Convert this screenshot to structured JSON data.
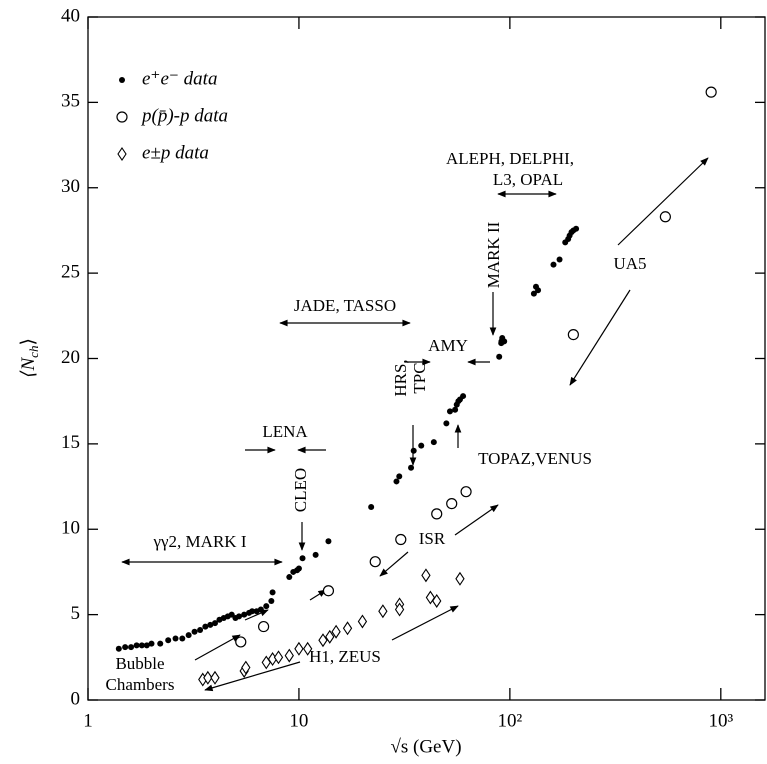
{
  "chart_data": {
    "type": "scatter",
    "x_label": "√s  (GeV)",
    "y_label_parts": [
      "⟨N",
      "ch",
      "⟩"
    ],
    "xscale": "log",
    "xlim": [
      1,
      1620
    ],
    "ylim": [
      0,
      40
    ],
    "xticks": [
      1,
      10,
      {
        "value": 100,
        "label": "10²"
      },
      {
        "value": 1000,
        "label": "10³"
      }
    ],
    "yticks": [
      0,
      5,
      10,
      15,
      20,
      25,
      30,
      35,
      40
    ],
    "legend": "upper left",
    "series": [
      {
        "name": "e⁺e⁻  data",
        "marker": "filled-circle",
        "color": "#000000",
        "x": [
          1.4,
          1.5,
          1.6,
          1.7,
          1.8,
          1.9,
          2.0,
          2.2,
          2.4,
          2.6,
          2.8,
          3.0,
          3.2,
          3.4,
          3.6,
          3.8,
          4.0,
          4.2,
          4.4,
          4.6,
          4.8,
          5.0,
          5.2,
          5.5,
          5.8,
          6.0,
          6.3,
          6.6,
          7.0,
          7.4,
          7.5,
          9.0,
          9.4,
          9.8,
          10.0,
          10.4,
          12.0,
          13.8,
          22,
          29,
          29.9,
          34,
          35,
          38,
          43.6,
          50,
          52,
          55,
          56,
          57,
          58,
          60,
          89,
          91,
          91.2,
          92,
          94,
          130,
          133,
          136,
          161,
          172,
          183,
          189,
          192,
          196,
          200,
          206
        ],
        "values": [
          3.0,
          3.1,
          3.1,
          3.2,
          3.2,
          3.2,
          3.3,
          3.3,
          3.5,
          3.6,
          3.6,
          3.8,
          4.0,
          4.1,
          4.3,
          4.4,
          4.5,
          4.7,
          4.8,
          4.9,
          5.0,
          4.8,
          4.9,
          5.0,
          5.1,
          5.2,
          5.2,
          5.3,
          5.5,
          5.8,
          6.3,
          7.2,
          7.5,
          7.6,
          7.7,
          8.3,
          8.5,
          9.3,
          11.3,
          12.8,
          13.1,
          13.6,
          14.6,
          14.9,
          15.1,
          16.2,
          16.9,
          17.0,
          17.3,
          17.5,
          17.6,
          17.8,
          20.1,
          20.9,
          21.0,
          21.2,
          21.0,
          23.8,
          24.2,
          24.0,
          25.5,
          25.8,
          26.8,
          27.0,
          27.2,
          27.4,
          27.5,
          27.6
        ]
      },
      {
        "name": "p(p̄)-p  data",
        "marker": "open-circle",
        "color": "#000000",
        "x": [
          5.3,
          6.8,
          13.8,
          23,
          30.4,
          45,
          53,
          62,
          200,
          546,
          900
        ],
        "values": [
          3.4,
          4.3,
          6.4,
          8.1,
          9.4,
          10.9,
          11.5,
          12.2,
          21.4,
          28.3,
          35.6
        ]
      },
      {
        "name": "e±p data",
        "marker": "open-diamond",
        "color": "#000000",
        "x": [
          3.5,
          3.7,
          4.0,
          5.5,
          5.6,
          7,
          7.5,
          8,
          9,
          10,
          11,
          13,
          14,
          15,
          17,
          20,
          25,
          30,
          30,
          40,
          42,
          45,
          58
        ],
        "values": [
          1.2,
          1.3,
          1.3,
          1.7,
          1.9,
          2.2,
          2.4,
          2.5,
          2.6,
          3.0,
          3.0,
          3.5,
          3.7,
          4.0,
          4.2,
          4.6,
          5.2,
          5.6,
          5.3,
          7.3,
          6.0,
          5.8,
          7.1
        ]
      }
    ],
    "annotations": [
      "γγ2, MARK I",
      "LENA",
      "CLEO",
      "JADE, TASSO",
      "HRS,",
      "TPC",
      "AMY",
      "MARK II",
      "ALEPH, DELPHI,",
      "L3, OPAL",
      "TOPAZ,VENUS",
      "ISR",
      "UA5",
      "H1, ZEUS",
      "Bubble",
      "Chambers"
    ]
  }
}
